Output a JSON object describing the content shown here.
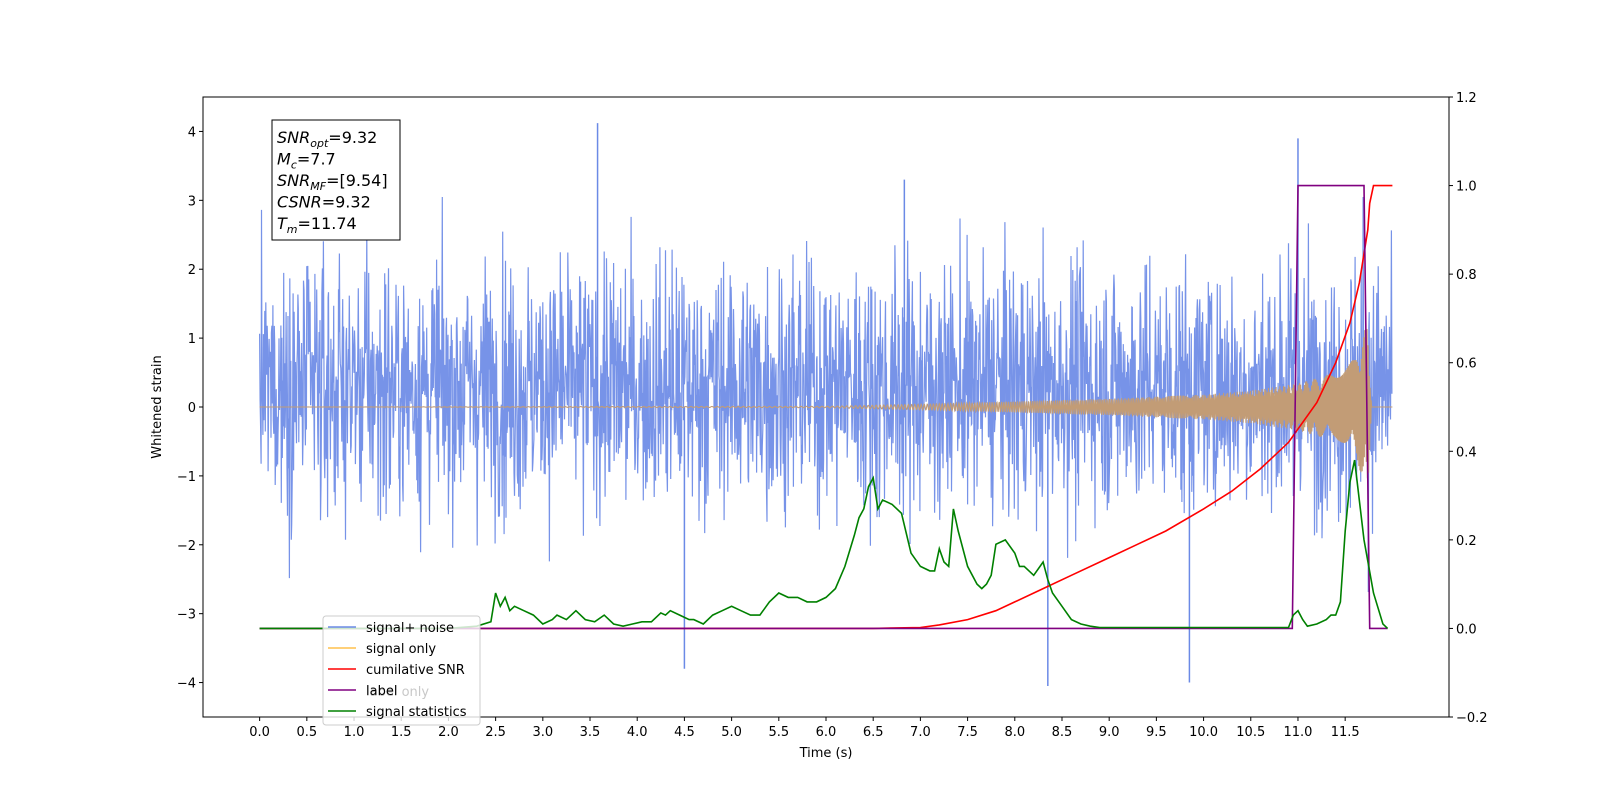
{
  "chart_data": {
    "type": "line",
    "xlabel": "Time (s)",
    "ylabel_left": "Whitened strain",
    "ylabel_right": "",
    "xlim": [
      -0.6,
      12.6
    ],
    "ylim_left": [
      -4.5,
      4.5
    ],
    "ylim_right": [
      -0.2,
      1.2
    ],
    "x_ticks": [
      0.0,
      0.5,
      1.0,
      1.5,
      2.0,
      2.5,
      3.0,
      3.5,
      4.0,
      4.5,
      5.0,
      5.5,
      6.0,
      6.5,
      7.0,
      7.5,
      8.0,
      8.5,
      9.0,
      9.5,
      10.0,
      10.5,
      11.0,
      11.5
    ],
    "x_tick_labels": [
      "0.0",
      "0.5",
      "1.0",
      "1.5",
      "2.0",
      "2.5",
      "3.0",
      "3.5",
      "4.0",
      "4.5",
      "5.0",
      "5.5",
      "6.0",
      "6.5",
      "7.0",
      "7.5",
      "8.0",
      "8.5",
      "9.0",
      "9.5",
      "10.0",
      "10.5",
      "11.0",
      "11.5"
    ],
    "y_left_ticks": [
      -4,
      -3,
      -2,
      -1,
      0,
      1,
      2,
      3,
      4
    ],
    "y_left_tick_labels": [
      "−4",
      "−3",
      "−2",
      "−1",
      "0",
      "1",
      "2",
      "3",
      "4"
    ],
    "y_right_ticks": [
      -0.2,
      0.0,
      0.2,
      0.4,
      0.6,
      0.8,
      1.0,
      1.2
    ],
    "y_right_tick_labels": [
      "−0.2",
      "0.0",
      "0.2",
      "0.4",
      "0.6",
      "0.8",
      "1.0",
      "1.2"
    ],
    "grid": false,
    "legend_placement": "lower-left",
    "legend": [
      {
        "label": "signal+ noise",
        "color": "#6b8ae6"
      },
      {
        "label": "signal only",
        "color": "#ffc04d"
      },
      {
        "label": "cumilative SNR",
        "color": "#ff0000"
      },
      {
        "label": "label",
        "color": "#800080"
      },
      {
        "label": "signal statistics",
        "color": "#008000"
      }
    ],
    "legend_occluded_text": "label only",
    "info_box": [
      {
        "base": "SNR",
        "sub": "opt",
        "rest": "=9.32"
      },
      {
        "base": "M",
        "sub": "c",
        "rest": "=7.7"
      },
      {
        "base": "SNR",
        "sub": "MF",
        "rest": "=[9.54]"
      },
      {
        "base": "CSNR",
        "sub": "",
        "rest": "=9.32"
      },
      {
        "base": "T",
        "sub": "m",
        "rest": "=11.74"
      }
    ],
    "series": [
      {
        "name": "signal+ noise",
        "axis": "left",
        "kind": "noise",
        "color": "#6b8ae6",
        "x_range": [
          0.0,
          12.0
        ],
        "typical_amplitude": [
          -2.0,
          2.6
        ],
        "max": 4.12,
        "min": -4.05,
        "noted_peaks": [
          [
            3.58,
            4.12
          ],
          [
            11.0,
            3.9
          ],
          [
            6.83,
            3.3
          ],
          [
            8.35,
            -4.05
          ],
          [
            9.85,
            -4.0
          ],
          [
            4.5,
            -3.8
          ]
        ]
      },
      {
        "name": "signal only",
        "axis": "left",
        "kind": "chirp",
        "color": "#ffc04d",
        "x_range": [
          0.0,
          12.0
        ],
        "envelope": [
          [
            0.0,
            0.0
          ],
          [
            6.0,
            0.01
          ],
          [
            7.0,
            0.04
          ],
          [
            8.0,
            0.08
          ],
          [
            9.0,
            0.12
          ],
          [
            10.0,
            0.18
          ],
          [
            10.5,
            0.24
          ],
          [
            11.0,
            0.34
          ],
          [
            11.4,
            0.5
          ],
          [
            11.6,
            0.7
          ],
          [
            11.74,
            1.25
          ],
          [
            11.78,
            0.0
          ],
          [
            12.0,
            0.0
          ]
        ]
      },
      {
        "name": "cumilative SNR",
        "axis": "right",
        "color": "#ff0000",
        "x": [
          0.0,
          6.5,
          7.0,
          7.2,
          7.5,
          7.8,
          8.0,
          8.3,
          8.6,
          9.0,
          9.3,
          9.6,
          10.0,
          10.3,
          10.6,
          10.9,
          11.2,
          11.4,
          11.55,
          11.65,
          11.74,
          11.76,
          11.8,
          12.0
        ],
        "y": [
          0.0,
          0.0,
          0.002,
          0.008,
          0.02,
          0.04,
          0.06,
          0.09,
          0.12,
          0.16,
          0.19,
          0.22,
          0.27,
          0.31,
          0.36,
          0.42,
          0.51,
          0.6,
          0.69,
          0.78,
          0.9,
          0.96,
          1.0,
          1.0
        ]
      },
      {
        "name": "label",
        "axis": "right",
        "color": "#800080",
        "x": [
          0.0,
          10.94,
          11.0,
          11.7,
          11.76,
          11.95
        ],
        "y": [
          0.0,
          0.0,
          1.0,
          1.0,
          0.0,
          0.0
        ]
      },
      {
        "name": "signal statistics",
        "axis": "right",
        "color": "#008000",
        "x": [
          0.0,
          2.0,
          2.3,
          2.45,
          2.5,
          2.55,
          2.6,
          2.65,
          2.7,
          2.8,
          2.9,
          3.0,
          3.1,
          3.15,
          3.25,
          3.35,
          3.45,
          3.55,
          3.65,
          3.75,
          3.85,
          3.95,
          4.05,
          4.15,
          4.25,
          4.3,
          4.35,
          4.45,
          4.55,
          4.6,
          4.7,
          4.8,
          4.9,
          5.0,
          5.1,
          5.2,
          5.3,
          5.4,
          5.5,
          5.6,
          5.7,
          5.8,
          5.9,
          6.0,
          6.1,
          6.2,
          6.3,
          6.35,
          6.4,
          6.45,
          6.5,
          6.55,
          6.6,
          6.7,
          6.8,
          6.9,
          7.0,
          7.1,
          7.15,
          7.2,
          7.25,
          7.3,
          7.35,
          7.4,
          7.5,
          7.6,
          7.65,
          7.7,
          7.75,
          7.8,
          7.9,
          8.0,
          8.05,
          8.1,
          8.2,
          8.3,
          8.35,
          8.4,
          8.5,
          8.6,
          8.7,
          8.8,
          8.9,
          9.0,
          9.5,
          10.0,
          10.5,
          10.9,
          10.95,
          11.0,
          11.05,
          11.1,
          11.2,
          11.3,
          11.35,
          11.4,
          11.45,
          11.5,
          11.55,
          11.6,
          11.7,
          11.8,
          11.9,
          11.95
        ],
        "y": [
          0.0,
          0.0,
          0.005,
          0.015,
          0.08,
          0.05,
          0.07,
          0.04,
          0.05,
          0.04,
          0.03,
          0.01,
          0.02,
          0.03,
          0.02,
          0.04,
          0.02,
          0.015,
          0.03,
          0.01,
          0.005,
          0.01,
          0.015,
          0.015,
          0.035,
          0.03,
          0.04,
          0.03,
          0.02,
          0.02,
          0.01,
          0.03,
          0.04,
          0.05,
          0.04,
          0.03,
          0.03,
          0.06,
          0.08,
          0.07,
          0.07,
          0.06,
          0.06,
          0.07,
          0.09,
          0.14,
          0.21,
          0.25,
          0.27,
          0.32,
          0.34,
          0.27,
          0.29,
          0.28,
          0.26,
          0.17,
          0.14,
          0.13,
          0.13,
          0.18,
          0.15,
          0.14,
          0.27,
          0.22,
          0.14,
          0.1,
          0.09,
          0.1,
          0.12,
          0.19,
          0.2,
          0.17,
          0.14,
          0.14,
          0.12,
          0.15,
          0.11,
          0.08,
          0.05,
          0.02,
          0.01,
          0.005,
          0.002,
          0.002,
          0.002,
          0.002,
          0.002,
          0.002,
          0.03,
          0.04,
          0.02,
          0.005,
          0.01,
          0.02,
          0.03,
          0.03,
          0.06,
          0.22,
          0.33,
          0.38,
          0.2,
          0.08,
          0.01,
          0.0
        ]
      }
    ]
  }
}
